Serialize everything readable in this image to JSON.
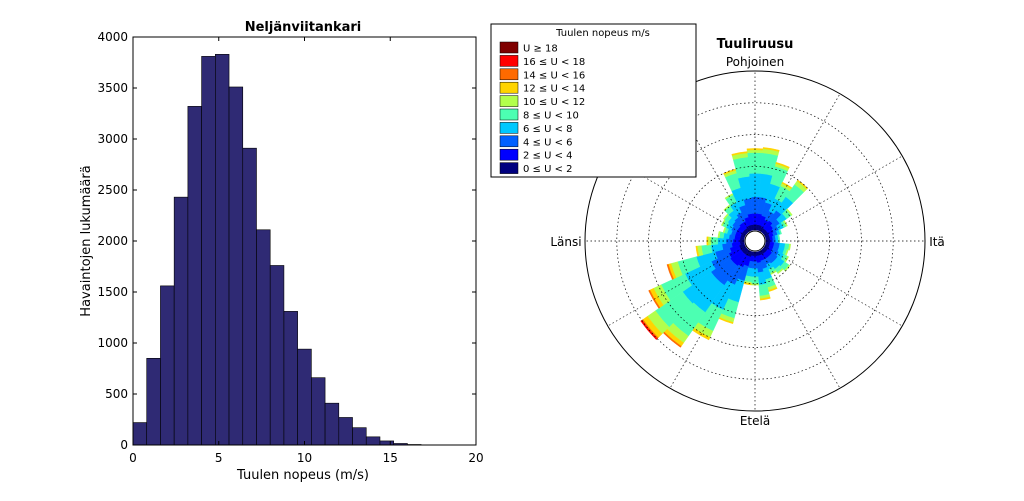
{
  "colors": {
    "bar_fill": "#2f2a74",
    "rose_bins": [
      "#00007f",
      "#0000ff",
      "#0060ff",
      "#00c8ff",
      "#4cffb2",
      "#b2ff4c",
      "#ffd400",
      "#ff6a00",
      "#ff0000",
      "#7f0000"
    ]
  },
  "chart_data": [
    {
      "type": "bar",
      "title": "Neljänviitankari",
      "xlabel": "Tuulen nopeus (m/s)",
      "ylabel": "Havaintojen lukumäärä",
      "xlim": [
        0,
        20
      ],
      "ylim": [
        0,
        4000
      ],
      "xticks": [
        "0",
        "5",
        "10",
        "15",
        "20"
      ],
      "yticks": [
        "0",
        "500",
        "1000",
        "1500",
        "2000",
        "2500",
        "3000",
        "3500",
        "4000"
      ],
      "bin_width": 0.8,
      "bin_starts": [
        0,
        0.8,
        1.6,
        2.4,
        3.2,
        4.0,
        4.8,
        5.6,
        6.4,
        7.2,
        8.0,
        8.8,
        9.6,
        10.4,
        11.2,
        12.0,
        12.8,
        13.6,
        14.4,
        15.2,
        16.0
      ],
      "values": [
        220,
        850,
        1560,
        2430,
        3320,
        3810,
        3830,
        3510,
        2910,
        2110,
        1760,
        1310,
        940,
        660,
        410,
        270,
        170,
        80,
        40,
        15,
        5
      ]
    },
    {
      "type": "wind-rose",
      "title": "Tuuliruusu",
      "direction_labels": {
        "north": "Pohjoinen",
        "east": "Itä",
        "south": "Etelä",
        "west": "Länsi"
      },
      "legend": {
        "title": "Tuulen nopeus m/s",
        "entries": [
          "U ≥ 18",
          "16 ≤ U < 18",
          "14 ≤ U < 16",
          "12 ≤ U < 14",
          "10 ≤ U < 12",
          "8 ≤ U < 10",
          "6 ≤ U < 8",
          "4 ≤ U < 6",
          "2 ≤ U < 4",
          "0 ≤ U < 2"
        ]
      },
      "speed_bins": [
        "0-2",
        "2-4",
        "4-6",
        "6-8",
        "8-10",
        "10-12",
        "12-14",
        "14-16",
        "16-18",
        ">=18"
      ],
      "radius_max": 0.115,
      "rings": [
        0.023,
        0.046,
        0.069,
        0.092,
        0.115
      ],
      "sector_width_deg": 10,
      "sectors_cumulative_frequency": [
        {
          "dir": 0,
          "cum": [
            0.004,
            0.012,
            0.024,
            0.041,
            0.056,
            0.058,
            0.059,
            0.059,
            0.059,
            0.059
          ]
        },
        {
          "dir": 10,
          "cum": [
            0.004,
            0.012,
            0.024,
            0.041,
            0.056,
            0.059,
            0.06,
            0.06,
            0.06,
            0.06
          ]
        },
        {
          "dir": 20,
          "cum": [
            0.004,
            0.011,
            0.021,
            0.035,
            0.048,
            0.05,
            0.051,
            0.051,
            0.051,
            0.051
          ]
        },
        {
          "dir": 30,
          "cum": [
            0.003,
            0.009,
            0.016,
            0.026,
            0.036,
            0.038,
            0.039,
            0.039,
            0.039,
            0.039
          ]
        },
        {
          "dir": 40,
          "cum": [
            0.003,
            0.01,
            0.019,
            0.031,
            0.042,
            0.045,
            0.046,
            0.046,
            0.046,
            0.046
          ]
        },
        {
          "dir": 50,
          "cum": [
            0.003,
            0.008,
            0.014,
            0.02,
            0.024,
            0.025,
            0.025,
            0.025,
            0.025,
            0.025
          ]
        },
        {
          "dir": 60,
          "cum": [
            0.003,
            0.007,
            0.011,
            0.015,
            0.017,
            0.018,
            0.018,
            0.018,
            0.018,
            0.018
          ]
        },
        {
          "dir": 70,
          "cum": [
            0.003,
            0.006,
            0.009,
            0.011,
            0.012,
            0.012,
            0.012,
            0.012,
            0.012,
            0.012
          ]
        },
        {
          "dir": 80,
          "cum": [
            0.003,
            0.005,
            0.007,
            0.009,
            0.01,
            0.01,
            0.01,
            0.01,
            0.01,
            0.01
          ]
        },
        {
          "dir": 90,
          "cum": [
            0.003,
            0.005,
            0.007,
            0.009,
            0.01,
            0.01,
            0.01,
            0.01,
            0.01,
            0.01
          ]
        },
        {
          "dir": 100,
          "cum": [
            0.003,
            0.006,
            0.01,
            0.014,
            0.017,
            0.018,
            0.018,
            0.018,
            0.018,
            0.018
          ]
        },
        {
          "dir": 110,
          "cum": [
            0.003,
            0.006,
            0.01,
            0.014,
            0.016,
            0.017,
            0.017,
            0.017,
            0.017,
            0.017
          ]
        },
        {
          "dir": 120,
          "cum": [
            0.003,
            0.006,
            0.011,
            0.015,
            0.018,
            0.019,
            0.019,
            0.019,
            0.019,
            0.019
          ]
        },
        {
          "dir": 130,
          "cum": [
            0.003,
            0.007,
            0.012,
            0.018,
            0.022,
            0.023,
            0.023,
            0.023,
            0.023,
            0.023
          ]
        },
        {
          "dir": 140,
          "cum": [
            0.003,
            0.007,
            0.012,
            0.017,
            0.02,
            0.021,
            0.021,
            0.021,
            0.021,
            0.021
          ]
        },
        {
          "dir": 150,
          "cum": [
            0.003,
            0.007,
            0.011,
            0.015,
            0.018,
            0.019,
            0.019,
            0.019,
            0.019,
            0.019
          ]
        },
        {
          "dir": 160,
          "cum": [
            0.003,
            0.007,
            0.013,
            0.021,
            0.027,
            0.029,
            0.03,
            0.03,
            0.03,
            0.03
          ]
        },
        {
          "dir": 170,
          "cum": [
            0.003,
            0.008,
            0.015,
            0.024,
            0.032,
            0.034,
            0.035,
            0.035,
            0.035,
            0.035
          ]
        },
        {
          "dir": 180,
          "cum": [
            0.003,
            0.007,
            0.012,
            0.018,
            0.023,
            0.024,
            0.024,
            0.024,
            0.024,
            0.024
          ]
        },
        {
          "dir": 190,
          "cum": [
            0.003,
            0.007,
            0.012,
            0.018,
            0.022,
            0.023,
            0.024,
            0.024,
            0.024,
            0.024
          ]
        },
        {
          "dir": 200,
          "cum": [
            0.004,
            0.011,
            0.022,
            0.038,
            0.05,
            0.053,
            0.054,
            0.054,
            0.054,
            0.054
          ]
        },
        {
          "dir": 210,
          "cum": [
            0.004,
            0.013,
            0.027,
            0.047,
            0.064,
            0.069,
            0.071,
            0.071,
            0.071,
            0.071
          ]
        },
        {
          "dir": 220,
          "cum": [
            0.004,
            0.014,
            0.031,
            0.055,
            0.076,
            0.082,
            0.085,
            0.086,
            0.086,
            0.086
          ]
        },
        {
          "dir": 230,
          "cum": [
            0.004,
            0.014,
            0.031,
            0.056,
            0.08,
            0.087,
            0.091,
            0.092,
            0.093,
            0.093
          ]
        },
        {
          "dir": 240,
          "cum": [
            0.004,
            0.013,
            0.027,
            0.048,
            0.067,
            0.073,
            0.076,
            0.077,
            0.077,
            0.077
          ]
        },
        {
          "dir": 250,
          "cum": [
            0.004,
            0.011,
            0.022,
            0.036,
            0.05,
            0.055,
            0.057,
            0.058,
            0.058,
            0.058
          ]
        },
        {
          "dir": 260,
          "cum": [
            0.003,
            0.009,
            0.016,
            0.024,
            0.031,
            0.034,
            0.035,
            0.035,
            0.035,
            0.035
          ]
        },
        {
          "dir": 270,
          "cum": [
            0.003,
            0.008,
            0.013,
            0.019,
            0.024,
            0.026,
            0.027,
            0.027,
            0.027,
            0.027
          ]
        },
        {
          "dir": 280,
          "cum": [
            0.003,
            0.007,
            0.011,
            0.015,
            0.018,
            0.019,
            0.019,
            0.019,
            0.019,
            0.019
          ]
        },
        {
          "dir": 290,
          "cum": [
            0.003,
            0.007,
            0.01,
            0.013,
            0.015,
            0.016,
            0.016,
            0.016,
            0.016,
            0.016
          ]
        },
        {
          "dir": 300,
          "cum": [
            0.003,
            0.007,
            0.011,
            0.015,
            0.018,
            0.019,
            0.019,
            0.019,
            0.019,
            0.019
          ]
        },
        {
          "dir": 310,
          "cum": [
            0.003,
            0.007,
            0.012,
            0.016,
            0.019,
            0.02,
            0.02,
            0.02,
            0.02,
            0.02
          ]
        },
        {
          "dir": 320,
          "cum": [
            0.003,
            0.008,
            0.013,
            0.019,
            0.023,
            0.024,
            0.024,
            0.024,
            0.024,
            0.024
          ]
        },
        {
          "dir": 330,
          "cum": [
            0.003,
            0.008,
            0.015,
            0.023,
            0.029,
            0.03,
            0.03,
            0.03,
            0.03,
            0.03
          ]
        },
        {
          "dir": 340,
          "cum": [
            0.004,
            0.01,
            0.019,
            0.032,
            0.043,
            0.045,
            0.046,
            0.046,
            0.046,
            0.046
          ]
        },
        {
          "dir": 350,
          "cum": [
            0.004,
            0.012,
            0.023,
            0.039,
            0.053,
            0.056,
            0.057,
            0.057,
            0.057,
            0.057
          ]
        }
      ]
    }
  ]
}
